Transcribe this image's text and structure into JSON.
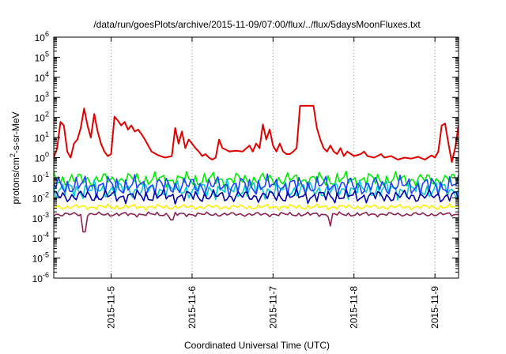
{
  "chart_data": {
    "type": "line",
    "title": "/data/run/goesPlots/archive/2015-11-09/07:00/flux/../flux/5daysMoonFluxes.txt",
    "xlabel": "Coordinated Universal Time (UTC)",
    "ylabel": {
      "prefix": "protons/cm",
      "sup": "2",
      "suffix": "-s-sr-MeV"
    },
    "yscale": "log",
    "ylim": [
      1e-06,
      1000000.0
    ],
    "xlim": [
      "2015-11-04 07:00",
      "2015-11-09 07:00"
    ],
    "yticks": [
      {
        "value": 1e-06,
        "exp": "-6"
      },
      {
        "value": 1e-05,
        "exp": "-5"
      },
      {
        "value": 0.0001,
        "exp": "-4"
      },
      {
        "value": 0.001,
        "exp": "-3"
      },
      {
        "value": 0.01,
        "exp": "-2"
      },
      {
        "value": 0.1,
        "exp": "-1"
      },
      {
        "value": 1,
        "exp": "0"
      },
      {
        "value": 10,
        "exp": "1"
      },
      {
        "value": 100,
        "exp": "2"
      },
      {
        "value": 1000.0,
        "exp": "3"
      },
      {
        "value": 10000.0,
        "exp": "4"
      },
      {
        "value": 100000.0,
        "exp": "5"
      },
      {
        "value": 1000000.0,
        "exp": "6"
      }
    ],
    "ytick_base": "10",
    "xticks": [
      {
        "time": "2015-11-05 00:00",
        "label": "2015-11-5"
      },
      {
        "time": "2015-11-06 00:00",
        "label": "2015-11-6"
      },
      {
        "time": "2015-11-07 00:00",
        "label": "2015-11-7"
      },
      {
        "time": "2015-11-08 00:00",
        "label": "2015-11-8"
      },
      {
        "time": "2015-11-09 00:00",
        "label": "2015-11-9"
      }
    ],
    "grid": "vertical-dotted",
    "legend": "none",
    "series": [
      {
        "color": "#e00000",
        "points": [
          [
            "2015-11-04 07:00",
            1.0
          ],
          [
            "2015-11-04 08:00",
            3
          ],
          [
            "2015-11-04 09:00",
            60
          ],
          [
            "2015-11-04 10:00",
            40
          ],
          [
            "2015-11-04 11:00",
            2
          ],
          [
            "2015-11-04 12:00",
            1
          ],
          [
            "2015-11-04 13:00",
            5
          ],
          [
            "2015-11-04 14:00",
            8
          ],
          [
            "2015-11-04 15:00",
            30
          ],
          [
            "2015-11-04 16:00",
            280
          ],
          [
            "2015-11-04 17:00",
            40
          ],
          [
            "2015-11-04 18:00",
            10
          ],
          [
            "2015-11-04 19:00",
            150
          ],
          [
            "2015-11-04 20:00",
            20
          ],
          [
            "2015-11-04 21:00",
            5
          ],
          [
            "2015-11-04 22:00",
            2
          ],
          [
            "2015-11-04 23:00",
            1.2
          ],
          [
            "2015-11-05 00:00",
            1.5
          ],
          [
            "2015-11-05 01:00",
            110
          ],
          [
            "2015-11-05 02:00",
            70
          ],
          [
            "2015-11-05 03:00",
            40
          ],
          [
            "2015-11-05 04:00",
            60
          ],
          [
            "2015-11-05 05:00",
            25
          ],
          [
            "2015-11-05 06:00",
            40
          ],
          [
            "2015-11-05 07:00",
            20
          ],
          [
            "2015-11-05 08:00",
            25
          ],
          [
            "2015-11-05 09:00",
            15
          ],
          [
            "2015-11-05 10:00",
            8
          ],
          [
            "2015-11-05 11:00",
            4
          ],
          [
            "2015-11-05 12:00",
            2
          ],
          [
            "2015-11-05 14:00",
            1.3
          ],
          [
            "2015-11-05 16:00",
            1.0
          ],
          [
            "2015-11-05 18:00",
            1.2
          ],
          [
            "2015-11-05 19:00",
            30
          ],
          [
            "2015-11-05 20:00",
            5
          ],
          [
            "2015-11-05 21:00",
            20
          ],
          [
            "2015-11-05 22:00",
            3
          ],
          [
            "2015-11-05 23:00",
            8
          ],
          [
            "2015-11-06 00:00",
            5
          ],
          [
            "2015-11-06 01:00",
            3
          ],
          [
            "2015-11-06 02:00",
            2
          ],
          [
            "2015-11-06 03:00",
            1.2
          ],
          [
            "2015-11-06 04:00",
            1.5
          ],
          [
            "2015-11-06 05:00",
            1.0
          ],
          [
            "2015-11-06 06:00",
            0.8
          ],
          [
            "2015-11-06 07:00",
            1.0
          ],
          [
            "2015-11-06 08:00",
            8
          ],
          [
            "2015-11-06 09:00",
            3
          ],
          [
            "2015-11-06 10:00",
            2.5
          ],
          [
            "2015-11-06 11:00",
            2
          ],
          [
            "2015-11-06 13:00",
            2.2
          ],
          [
            "2015-11-06 15:00",
            2
          ],
          [
            "2015-11-06 17:00",
            4
          ],
          [
            "2015-11-06 18:00",
            2
          ],
          [
            "2015-11-06 19:00",
            5
          ],
          [
            "2015-11-06 20:00",
            3
          ],
          [
            "2015-11-06 21:00",
            45
          ],
          [
            "2015-11-06 22:00",
            8
          ],
          [
            "2015-11-06 23:00",
            25
          ],
          [
            "2015-11-07 00:00",
            4
          ],
          [
            "2015-11-07 01:00",
            2
          ],
          [
            "2015-11-07 02:00",
            5
          ],
          [
            "2015-11-07 03:00",
            2
          ],
          [
            "2015-11-07 04:00",
            1.5
          ],
          [
            "2015-11-07 05:00",
            1.5
          ],
          [
            "2015-11-07 06:00",
            2
          ],
          [
            "2015-11-07 07:00",
            3
          ],
          [
            "2015-11-07 08:00",
            380
          ],
          [
            "2015-11-07 12:00",
            380
          ],
          [
            "2015-11-07 13:00",
            30
          ],
          [
            "2015-11-07 14:00",
            8
          ],
          [
            "2015-11-07 15:00",
            3
          ],
          [
            "2015-11-07 16:00",
            2
          ],
          [
            "2015-11-07 17:00",
            4
          ],
          [
            "2015-11-07 18:00",
            2
          ],
          [
            "2015-11-07 19:00",
            1.5
          ],
          [
            "2015-11-07 20:00",
            3
          ],
          [
            "2015-11-07 21:00",
            1.2
          ],
          [
            "2015-11-07 22:00",
            2
          ],
          [
            "2015-11-08 00:00",
            1.2
          ],
          [
            "2015-11-08 02:00",
            1.5
          ],
          [
            "2015-11-08 03:00",
            2
          ],
          [
            "2015-11-08 04:00",
            1.2
          ],
          [
            "2015-11-08 06:00",
            1.0
          ],
          [
            "2015-11-08 08:00",
            1.5
          ],
          [
            "2015-11-08 09:00",
            1
          ],
          [
            "2015-11-08 11:00",
            1.2
          ],
          [
            "2015-11-08 13:00",
            0.8
          ],
          [
            "2015-11-08 15:00",
            1.0
          ],
          [
            "2015-11-08 17:00",
            0.9
          ],
          [
            "2015-11-08 19:00",
            1.1
          ],
          [
            "2015-11-08 21:00",
            0.8
          ],
          [
            "2015-11-08 23:00",
            1.3
          ],
          [
            "2015-11-09 00:00",
            1.0
          ],
          [
            "2015-11-09 01:00",
            2
          ],
          [
            "2015-11-09 02:00",
            40
          ],
          [
            "2015-11-09 03:00",
            50
          ],
          [
            "2015-11-09 04:00",
            5
          ],
          [
            "2015-11-09 05:00",
            0.6
          ],
          [
            "2015-11-09 06:00",
            3
          ],
          [
            "2015-11-09 07:00",
            40
          ]
        ]
      },
      {
        "color": "#00ee00",
        "baseline": 0.08,
        "amplitude": 0.35,
        "phase": 1.1
      },
      {
        "color": "#00cccc",
        "baseline": 0.025,
        "amplitude": 0.4,
        "phase": 2.3
      },
      {
        "color": "#2040ff",
        "baseline": 0.04,
        "amplitude": 0.45,
        "phase": 3.7
      },
      {
        "color": "#0000aa",
        "baseline": 0.012,
        "amplitude": 0.3,
        "phase": 0.5
      },
      {
        "color": "#ffee00",
        "baseline": 0.0035,
        "amplitude": 0.12,
        "phase": 4.2
      },
      {
        "color": "#8b2252",
        "baseline": 0.0015,
        "amplitude": 0.1,
        "phase": 5.0,
        "dips": [
          [
            "2015-11-04 16:00",
            0.0002
          ],
          [
            "2015-11-07 17:00",
            0.0004
          ],
          [
            "2015-11-05 18:00",
            0.0008
          ]
        ]
      }
    ]
  }
}
